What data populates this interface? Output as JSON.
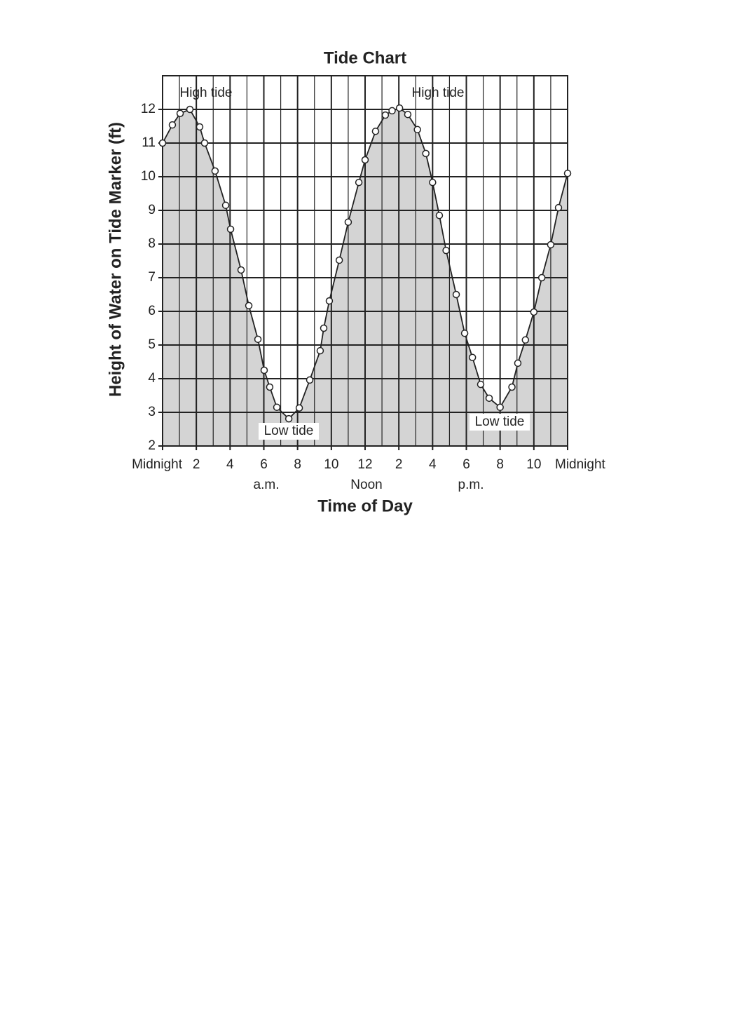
{
  "chart_data": {
    "type": "line",
    "title": "Tide Chart",
    "x_label": "Time of Day",
    "y_label": "Height of Water on Tide Marker (ft)",
    "x": [
      0,
      0.58,
      1.04,
      1.62,
      2.2,
      2.49,
      3.11,
      3.74,
      4.03,
      4.65,
      5.11,
      5.65,
      6.02,
      6.35,
      6.77,
      7.48,
      8.1,
      8.72,
      9.34,
      9.55,
      9.88,
      10.47,
      11.0,
      11.63,
      12.0,
      12.62,
      13.2,
      13.6,
      14.04,
      14.53,
      15.1,
      15.6,
      16.0,
      16.4,
      16.8,
      17.4,
      17.9,
      18.36,
      18.85,
      19.35,
      20.0,
      20.7,
      21.05,
      21.5,
      22.0,
      22.47,
      23.0,
      23.46,
      24.0
    ],
    "series": [
      {
        "name": "Height of water",
        "color": "#222222",
        "fill": "#d4d4d4",
        "values": [
          11.0,
          11.54,
          11.88,
          12.0,
          11.48,
          11.0,
          10.17,
          9.15,
          8.44,
          7.23,
          6.17,
          5.17,
          4.25,
          3.75,
          3.15,
          2.81,
          3.13,
          3.96,
          4.83,
          5.5,
          6.31,
          7.52,
          8.65,
          9.83,
          10.5,
          11.35,
          11.83,
          11.96,
          12.04,
          11.85,
          11.4,
          10.69,
          9.83,
          8.85,
          7.81,
          6.5,
          5.35,
          4.63,
          3.83,
          3.42,
          3.15,
          3.75,
          4.46,
          5.15,
          5.98,
          7.0,
          7.98,
          9.08,
          10.1
        ]
      }
    ],
    "xlim": [
      0,
      24
    ],
    "ylim": [
      2,
      13
    ],
    "xticks": [
      {
        "value": 0,
        "label": "Midnight"
      },
      2,
      4,
      6,
      8,
      10,
      12,
      {
        "value": 14,
        "label": "2"
      },
      {
        "value": 16,
        "label": "4"
      },
      {
        "value": 18,
        "label": "6"
      },
      {
        "value": 20,
        "label": "8"
      },
      {
        "value": 22,
        "label": "10"
      },
      {
        "value": 24,
        "label": "Midnight"
      }
    ],
    "yticks": [
      2,
      3,
      4,
      5,
      6,
      7,
      8,
      9,
      10,
      11,
      12
    ],
    "x_sublabels": [
      "a.m.",
      "Noon",
      "p.m."
    ],
    "annotations": [
      "High tide",
      "High tide",
      "Low tide",
      "Low tide"
    ],
    "grid": true
  }
}
